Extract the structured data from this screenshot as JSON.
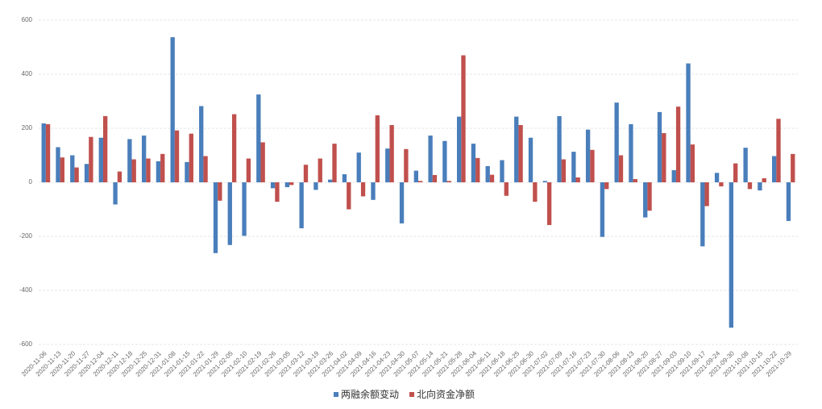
{
  "chart_data": {
    "type": "bar",
    "categories": [
      "2020-11-06",
      "2020-11-13",
      "2020-11-20",
      "2020-11-27",
      "2020-12-04",
      "2020-12-11",
      "2020-12-18",
      "2020-12-25",
      "2020-12-31",
      "2021-01-08",
      "2021-01-15",
      "2021-01-22",
      "2021-01-29",
      "2021-02-05",
      "2021-02-10",
      "2021-02-19",
      "2021-02-26",
      "2021-03-05",
      "2021-03-12",
      "2021-03-19",
      "2021-03-26",
      "2021-04-02",
      "2021-04-09",
      "2021-04-16",
      "2021-04-23",
      "2021-04-30",
      "2021-05-07",
      "2021-05-14",
      "2021-05-21",
      "2021-05-28",
      "2021-06-04",
      "2021-06-11",
      "2021-06-18",
      "2021-06-25",
      "2021-06-30",
      "2021-07-02",
      "2021-07-09",
      "2021-07-16",
      "2021-07-23",
      "2021-07-30",
      "2021-08-06",
      "2021-08-13",
      "2021-08-20",
      "2021-08-27",
      "2021-09-03",
      "2021-09-10",
      "2021-09-17",
      "2021-09-24",
      "2021-09-30",
      "2021-10-08",
      "2021-10-15",
      "2021-10-22",
      "2021-10-29"
    ],
    "series": [
      {
        "name": "两融余额变动",
        "color": "#4a7ebb",
        "values": [
          218,
          130,
          100,
          68,
          165,
          -82,
          160,
          173,
          78,
          537,
          75,
          282,
          -262,
          -232,
          -198,
          325,
          -22,
          -18,
          -170,
          -28,
          10,
          30,
          110,
          -65,
          125,
          -152,
          43,
          173,
          153,
          243,
          143,
          60,
          82,
          243,
          165,
          5,
          245,
          113,
          195,
          -202,
          295,
          215,
          -130,
          260,
          45,
          440,
          -237,
          35,
          -538,
          128,
          -30,
          97,
          -143
        ]
      },
      {
        "name": "北向资金净额",
        "color": "#c0504d",
        "values": [
          215,
          92,
          55,
          168,
          245,
          40,
          85,
          88,
          105,
          192,
          180,
          97,
          -68,
          252,
          88,
          148,
          -72,
          -10,
          65,
          88,
          143,
          -100,
          -52,
          248,
          212,
          123,
          5,
          27,
          5,
          470,
          90,
          28,
          -50,
          212,
          -72,
          -158,
          85,
          18,
          120,
          -25,
          100,
          12,
          -105,
          182,
          280,
          140,
          -88,
          -15,
          70,
          -25,
          15,
          235,
          105
        ]
      }
    ],
    "ylim": [
      -600,
      600
    ],
    "yticks": [
      -600,
      -400,
      -200,
      0,
      200,
      400,
      600
    ],
    "grid": true,
    "legend": "bottom"
  }
}
